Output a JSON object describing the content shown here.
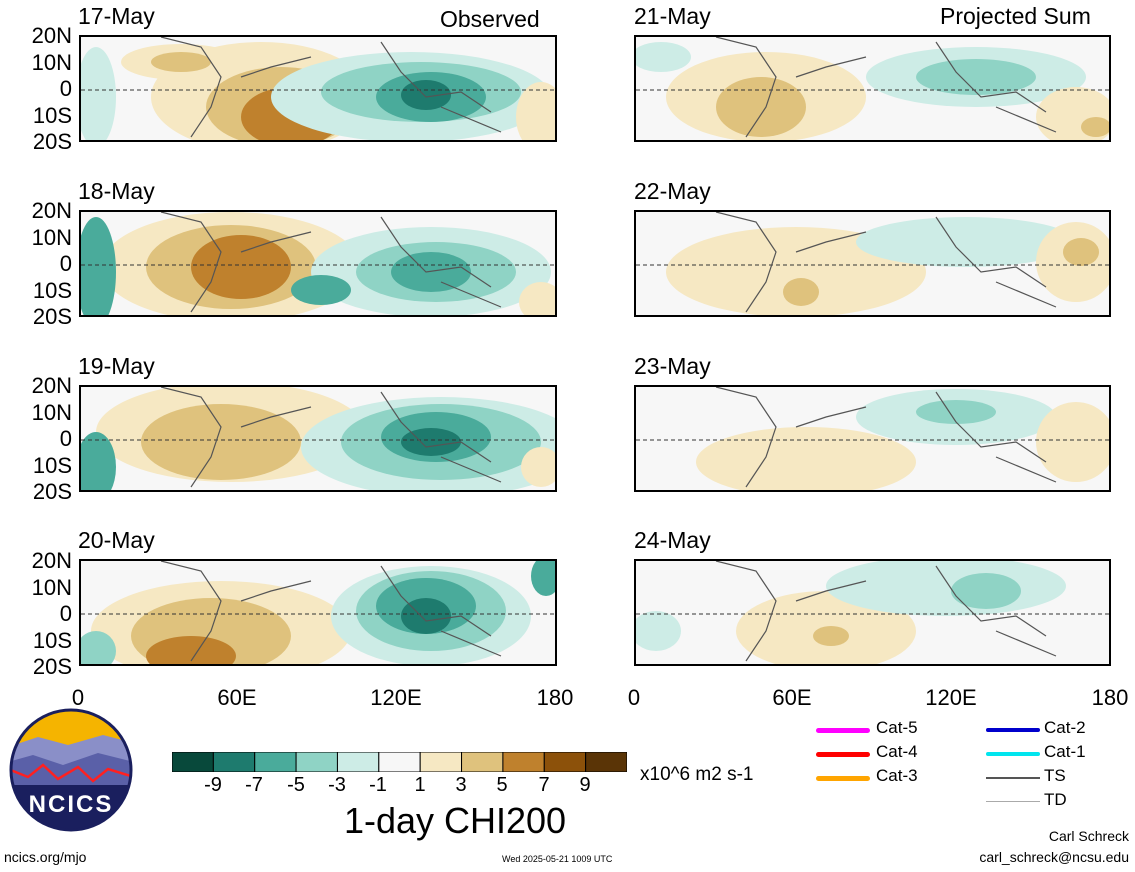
{
  "panels_left": {
    "header": "Observed",
    "dates": [
      "17-May",
      "18-May",
      "19-May",
      "20-May"
    ]
  },
  "panels_right": {
    "header": "Projected Sum",
    "dates": [
      "21-May",
      "22-May",
      "23-May",
      "24-May"
    ]
  },
  "lat_labels": [
    "20N",
    "10N",
    "0",
    "10S",
    "20S"
  ],
  "lon_labels": [
    "0",
    "60E",
    "120E",
    "180"
  ],
  "colorbar": {
    "ticks": [
      "-9",
      "-7",
      "-5",
      "-3",
      "-1",
      "1",
      "3",
      "5",
      "7",
      "9"
    ],
    "colors": [
      "#08493b",
      "#1e7b6e",
      "#4aab9b",
      "#8fd3c5",
      "#cdece6",
      "#f7f7f7",
      "#f6e8c3",
      "#dfc27d",
      "#bf812d",
      "#8c510a",
      "#5a3406"
    ],
    "units": "x10^6 m2 s-1",
    "title": "1-day CHI200"
  },
  "legend": {
    "items": [
      {
        "label": "Cat-5",
        "color": "#ff00ff"
      },
      {
        "label": "Cat-4",
        "color": "#ff0000"
      },
      {
        "label": "Cat-3",
        "color": "#ffa500"
      },
      {
        "label": "Cat-2",
        "color": "#0000cc"
      },
      {
        "label": "Cat-1",
        "color": "#00e5ee"
      },
      {
        "label": "TS",
        "color": "#555555"
      },
      {
        "label": "TD",
        "color": "#aaaaaa"
      }
    ]
  },
  "logo": {
    "text": "NCICS"
  },
  "footer": {
    "url": "ncics.org/mjo",
    "timestamp": "Wed 2025-05-21 1009 UTC",
    "author": "Carl Schreck",
    "email": "carl_schreck@ncsu.edu"
  }
}
